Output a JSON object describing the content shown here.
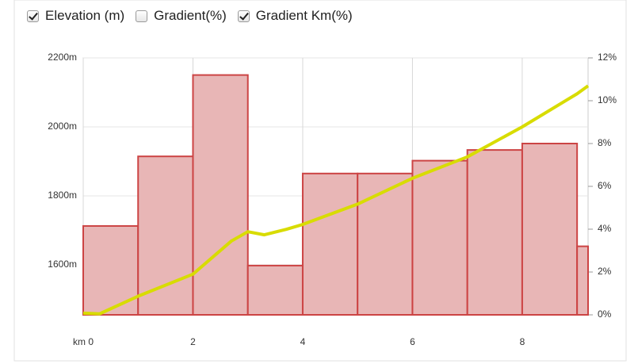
{
  "legend": [
    {
      "label": "Elevation (m)",
      "checked": true
    },
    {
      "label": "Gradient(%)",
      "checked": false
    },
    {
      "label": "Gradient Km(%)",
      "checked": true
    }
  ],
  "chart_data": {
    "type": "combo",
    "grid": true,
    "xlim": [
      0,
      9.2
    ],
    "xticks": [
      {
        "value": 0,
        "label": "km 0"
      },
      2,
      4,
      6,
      8
    ],
    "ylim": [
      1455,
      2200
    ],
    "yticks": [
      {
        "value": 1600,
        "label": "1600m"
      },
      {
        "value": 1800,
        "label": "1800m"
      },
      {
        "value": 2000,
        "label": "2000m"
      },
      {
        "value": 2200,
        "label": "2200m"
      }
    ],
    "y2lim": [
      0,
      12
    ],
    "y2ticks": [
      {
        "value": 0,
        "label": "0%"
      },
      {
        "value": 2,
        "label": "2%"
      },
      {
        "value": 4,
        "label": "4%"
      },
      {
        "value": 6,
        "label": "6%"
      },
      {
        "value": 8,
        "label": "8%"
      },
      {
        "value": 10,
        "label": "10%"
      },
      {
        "value": 12,
        "label": "12%"
      }
    ],
    "series": [
      {
        "type": "bar",
        "axis": "y2",
        "color": "#e8b6b6",
        "edge_color": "#cc4444",
        "bins": [
          0,
          1,
          2,
          3,
          4,
          5,
          6,
          7,
          8,
          9,
          9.2
        ],
        "values": [
          4.15,
          7.4,
          11.2,
          2.3,
          6.6,
          6.6,
          7.2,
          7.7,
          8.0,
          3.2
        ]
      },
      {
        "type": "line",
        "color": "#d8dc00",
        "x": [
          0,
          0.3,
          1,
          2,
          2.7,
          3,
          3.3,
          3.7,
          4,
          5,
          6,
          7,
          8,
          9,
          9.2
        ],
        "values": [
          1460,
          1458,
          1509,
          1573,
          1669,
          1696,
          1687,
          1703,
          1717,
          1776,
          1851,
          1913,
          2000,
          2096,
          2119
        ]
      }
    ]
  }
}
